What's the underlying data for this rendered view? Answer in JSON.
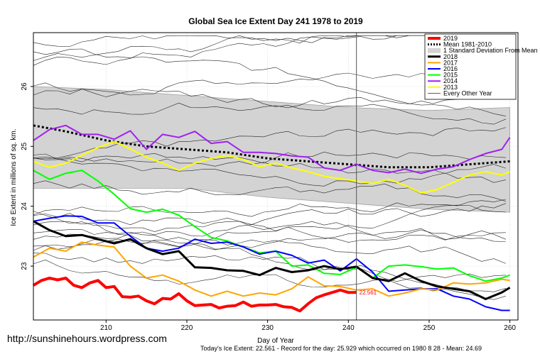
{
  "watermark": "http://sunshinehours.wordpress.com",
  "chart_data": {
    "type": "line",
    "title": "Global Sea Ice Extent Day 241 1978 to 2019",
    "xlabel": "Day of Year",
    "ylabel": "Ice Extent in millions of sq. km.",
    "footer": "Today's Ice Extent: 22.561  - Record for the day: 25.929 which occurred on 1980 8 28  - Mean: 24.69",
    "xlim": [
      201,
      261
    ],
    "ylim": [
      22.1,
      26.9
    ],
    "x_ticks": [
      210,
      220,
      230,
      240,
      250,
      260
    ],
    "y_ticks": [
      23,
      24,
      25,
      26
    ],
    "today_day": 241,
    "today_value": 22.561,
    "today_label": "22.561",
    "legend_position": "top-right",
    "legend": [
      {
        "label": "2019",
        "color": "#ff0000",
        "style": "solid",
        "width": 4
      },
      {
        "label": "Mean 1981-2010",
        "color": "#000000",
        "style": "dotted",
        "width": 3
      },
      {
        "label": "1 Standard Deviation From Mean",
        "color": "#d3d3d3",
        "style": "box",
        "width": 10
      },
      {
        "label": "2018",
        "color": "#000000",
        "style": "solid",
        "width": 3
      },
      {
        "label": "2017",
        "color": "#ffa500",
        "style": "solid",
        "width": 2
      },
      {
        "label": "2016",
        "color": "#0000ff",
        "style": "solid",
        "width": 2
      },
      {
        "label": "2015",
        "color": "#00ff00",
        "style": "solid",
        "width": 2
      },
      {
        "label": "2014",
        "color": "#a020f0",
        "style": "solid",
        "width": 2
      },
      {
        "label": "2013",
        "color": "#ffff00",
        "style": "solid",
        "width": 2
      },
      {
        "label": "Every Other Year",
        "color": "#000000",
        "style": "solid",
        "width": 0.6
      }
    ],
    "std_band": {
      "x": [
        201,
        210,
        220,
        230,
        240,
        250,
        260
      ],
      "upper": [
        26.0,
        25.95,
        25.85,
        25.75,
        25.65,
        25.6,
        25.65
      ],
      "lower": [
        24.3,
        24.3,
        24.3,
        24.15,
        24.05,
        23.95,
        23.9
      ]
    },
    "mean": {
      "x": [
        201,
        205,
        210,
        215,
        220,
        225,
        230,
        235,
        240,
        245,
        250,
        255,
        260
      ],
      "values": [
        25.35,
        25.25,
        25.1,
        25.0,
        24.95,
        24.9,
        24.8,
        24.75,
        24.7,
        24.65,
        24.65,
        24.7,
        24.75
      ]
    },
    "series": [
      {
        "name": "2019",
        "color": "#ff0000",
        "width": 4,
        "x": [
          201,
          202,
          203,
          204,
          205,
          206,
          207,
          208,
          209,
          210,
          211,
          212,
          213,
          214,
          215,
          216,
          217,
          218,
          219,
          220,
          221,
          222,
          223,
          224,
          225,
          226,
          227,
          228,
          229,
          230,
          231,
          232,
          233,
          234,
          235,
          236,
          237,
          238,
          239,
          240,
          241
        ],
        "values": [
          22.68,
          22.76,
          22.8,
          22.77,
          22.8,
          22.68,
          22.64,
          22.72,
          22.76,
          22.64,
          22.66,
          22.49,
          22.48,
          22.5,
          22.42,
          22.37,
          22.46,
          22.45,
          22.54,
          22.42,
          22.34,
          22.35,
          22.36,
          22.3,
          22.33,
          22.34,
          22.4,
          22.33,
          22.35,
          22.35,
          22.36,
          22.32,
          22.31,
          22.25,
          22.37,
          22.47,
          22.52,
          22.56,
          22.6,
          22.56,
          22.561
        ]
      },
      {
        "name": "2018",
        "color": "#000000",
        "width": 3,
        "x": [
          201,
          203,
          205,
          207,
          209,
          211,
          213,
          215,
          217,
          219,
          221,
          223,
          225,
          227,
          229,
          231,
          233,
          235,
          237,
          239,
          241,
          243,
          245,
          247,
          249,
          251,
          253,
          255,
          257,
          259,
          260
        ],
        "values": [
          23.75,
          23.6,
          23.5,
          23.52,
          23.45,
          23.38,
          23.45,
          23.3,
          23.2,
          23.25,
          22.98,
          22.97,
          22.93,
          22.92,
          22.85,
          22.97,
          22.9,
          22.93,
          23.0,
          22.95,
          22.99,
          22.8,
          22.75,
          22.88,
          22.75,
          22.66,
          22.62,
          22.58,
          22.45,
          22.56,
          22.64
        ]
      },
      {
        "name": "2017",
        "color": "#ffa500",
        "width": 2,
        "x": [
          201,
          203,
          205,
          207,
          209,
          211,
          213,
          215,
          217,
          219,
          221,
          223,
          225,
          227,
          229,
          231,
          233,
          235,
          237,
          239,
          241,
          243,
          245,
          247,
          249,
          251,
          253,
          255,
          257,
          259,
          260
        ],
        "values": [
          23.15,
          23.3,
          23.25,
          23.4,
          23.35,
          23.32,
          23.0,
          22.8,
          22.85,
          22.75,
          22.6,
          22.5,
          22.58,
          22.5,
          22.55,
          22.52,
          22.62,
          22.82,
          22.67,
          22.66,
          22.6,
          22.62,
          22.5,
          22.55,
          22.62,
          22.6,
          22.72,
          22.7,
          22.72,
          22.78,
          22.76
        ]
      },
      {
        "name": "2016",
        "color": "#0000ff",
        "width": 2,
        "x": [
          201,
          203,
          205,
          207,
          209,
          211,
          213,
          215,
          217,
          219,
          221,
          223,
          225,
          227,
          229,
          231,
          233,
          235,
          237,
          239,
          241,
          243,
          245,
          247,
          249,
          251,
          253,
          255,
          257,
          259,
          260
        ],
        "values": [
          23.75,
          23.8,
          23.84,
          23.83,
          23.72,
          23.72,
          23.5,
          23.3,
          23.25,
          23.3,
          23.45,
          23.38,
          23.4,
          23.32,
          23.2,
          23.25,
          23.18,
          23.05,
          23.1,
          22.92,
          23.12,
          22.9,
          22.58,
          22.6,
          22.62,
          22.62,
          22.5,
          22.45,
          22.32,
          22.26,
          22.26
        ]
      },
      {
        "name": "2015",
        "color": "#00ff00",
        "width": 2,
        "x": [
          201,
          203,
          205,
          207,
          209,
          211,
          213,
          215,
          217,
          219,
          221,
          223,
          225,
          227,
          229,
          231,
          233,
          235,
          237,
          239,
          241,
          243,
          245,
          247,
          249,
          251,
          253,
          255,
          257,
          259,
          260
        ],
        "values": [
          24.6,
          24.45,
          24.55,
          24.6,
          24.42,
          24.2,
          23.96,
          23.9,
          23.95,
          23.85,
          23.66,
          23.48,
          23.42,
          23.32,
          23.22,
          23.25,
          23.0,
          23.02,
          22.88,
          22.86,
          22.98,
          22.8,
          23.0,
          23.02,
          22.99,
          22.95,
          22.97,
          22.84,
          22.75,
          22.8,
          22.85
        ]
      },
      {
        "name": "2014",
        "color": "#a020f0",
        "width": 2,
        "x": [
          201,
          203,
          205,
          207,
          209,
          211,
          213,
          215,
          217,
          219,
          221,
          223,
          225,
          227,
          229,
          231,
          233,
          235,
          237,
          239,
          241,
          243,
          245,
          247,
          249,
          251,
          253,
          255,
          257,
          259,
          260
        ],
        "values": [
          25.1,
          25.28,
          25.35,
          25.2,
          25.2,
          25.12,
          25.26,
          24.95,
          25.2,
          25.15,
          25.25,
          25.05,
          25.08,
          24.9,
          24.9,
          24.88,
          24.84,
          24.82,
          24.64,
          24.6,
          24.7,
          24.6,
          24.56,
          24.62,
          24.55,
          24.62,
          24.66,
          24.78,
          24.88,
          24.95,
          25.15
        ]
      },
      {
        "name": "2013",
        "color": "#ffff00",
        "width": 2,
        "x": [
          201,
          203,
          205,
          207,
          209,
          211,
          213,
          215,
          217,
          219,
          221,
          223,
          225,
          227,
          229,
          231,
          233,
          235,
          237,
          239,
          241,
          243,
          245,
          247,
          249,
          251,
          253,
          255,
          257,
          259,
          260
        ],
        "values": [
          24.75,
          24.65,
          24.72,
          24.85,
          24.98,
          25.08,
          24.96,
          24.82,
          24.72,
          24.6,
          24.72,
          24.8,
          24.85,
          24.78,
          24.66,
          24.72,
          24.64,
          24.58,
          24.5,
          24.46,
          24.42,
          24.38,
          24.45,
          24.35,
          24.22,
          24.28,
          24.4,
          24.52,
          24.58,
          24.52,
          24.58
        ]
      }
    ]
  }
}
